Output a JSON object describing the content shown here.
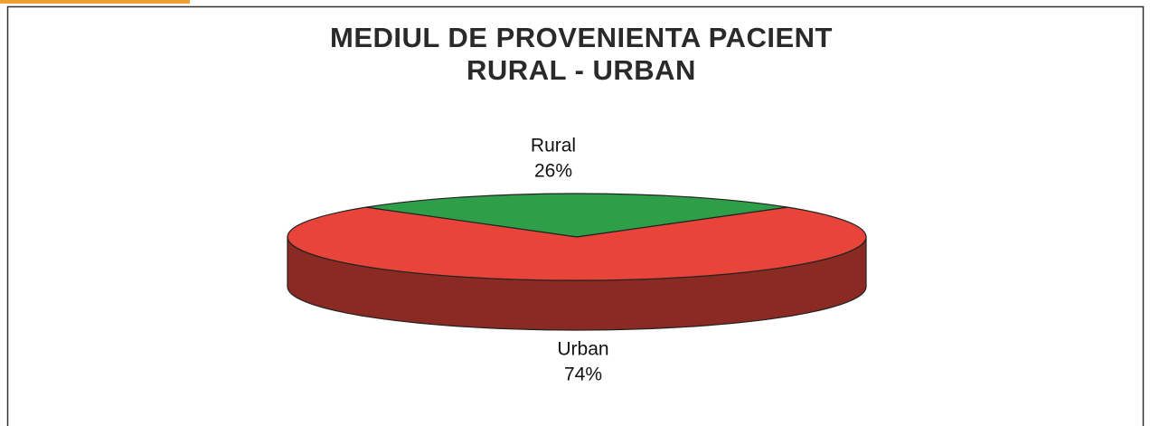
{
  "chart_data": {
    "type": "pie3d",
    "title": "MEDIUL DE PROVENIENTA PACIENT",
    "subtitle": "RURAL - URBAN",
    "categories": [
      "Rural",
      "Urban"
    ],
    "values": [
      26,
      74
    ],
    "value_labels": [
      "26%",
      "74%"
    ],
    "colors": [
      "#2f9e48",
      "#e8443a"
    ]
  }
}
